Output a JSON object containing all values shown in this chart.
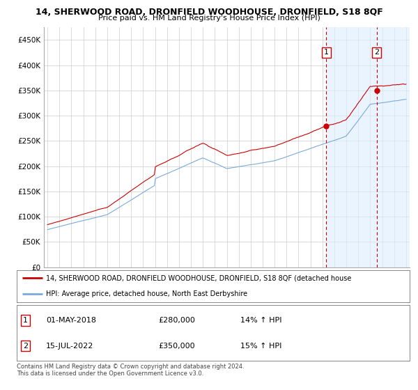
{
  "title1": "14, SHERWOOD ROAD, DRONFIELD WOODHOUSE, DRONFIELD, S18 8QF",
  "title2": "Price paid vs. HM Land Registry's House Price Index (HPI)",
  "legend_line1": "14, SHERWOOD ROAD, DRONFIELD WOODHOUSE, DRONFIELD, S18 8QF (detached house",
  "legend_line2": "HPI: Average price, detached house, North East Derbyshire",
  "footnote1": "Contains HM Land Registry data © Crown copyright and database right 2024.",
  "footnote2": "This data is licensed under the Open Government Licence v3.0.",
  "table": [
    {
      "num": "1",
      "date": "01-MAY-2018",
      "price": "£280,000",
      "change": "14% ↑ HPI"
    },
    {
      "num": "2",
      "date": "15-JUL-2022",
      "price": "£350,000",
      "change": "15% ↑ HPI"
    }
  ],
  "ylim": [
    0,
    475000
  ],
  "yticks": [
    0,
    50000,
    100000,
    150000,
    200000,
    250000,
    300000,
    350000,
    400000,
    450000
  ],
  "ytick_labels": [
    "£0",
    "£50K",
    "£100K",
    "£150K",
    "£200K",
    "£250K",
    "£300K",
    "£350K",
    "£400K",
    "£450K"
  ],
  "red_color": "#cc0000",
  "blue_color": "#7aaadd",
  "vline_color": "#cc0000",
  "background_plot": "#ffffff",
  "shade_color": "#ddeeff",
  "background_fig": "#ffffff",
  "grid_color": "#cccccc",
  "sale1_x": 2018.33,
  "sale1_y": 280000,
  "sale1_hpi_y": 245614,
  "sale2_x": 2022.54,
  "sale2_y": 350000,
  "sale2_hpi_y": 304348,
  "xlim_left": 1994.7,
  "xlim_right": 2025.3
}
